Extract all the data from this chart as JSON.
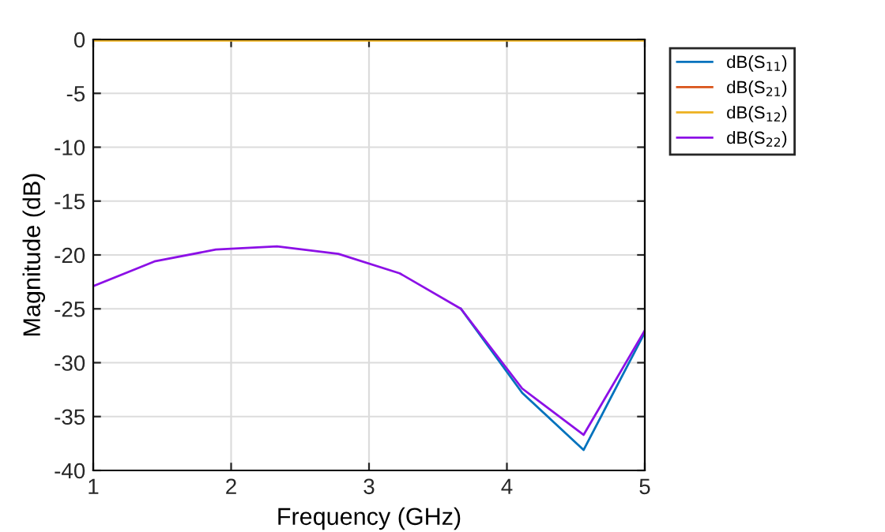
{
  "chart_data": {
    "type": "line",
    "xlabel": "Frequency (GHz)",
    "ylabel": "Magnitude (dB)",
    "x": [
      1,
      1.444,
      1.889,
      2.333,
      2.778,
      3.222,
      3.667,
      4.111,
      4.556,
      5
    ],
    "series": [
      {
        "name": "dB(S$_{11}$)",
        "color": "#0072bd",
        "values": [
          null,
          null,
          null,
          null,
          null,
          null,
          -25.0,
          -32.8,
          -38.1,
          -27.2
        ]
      },
      {
        "name": "dB(S$_{21}$)",
        "color": "#d95319",
        "values": [
          null,
          null,
          null,
          null,
          null,
          null,
          null,
          null,
          null,
          null
        ]
      },
      {
        "name": "dB(S$_{12}$)",
        "color": "#edb120",
        "values": [
          -0.1,
          -0.1,
          -0.1,
          -0.1,
          -0.1,
          -0.1,
          -0.1,
          -0.1,
          -0.1,
          -0.1
        ]
      },
      {
        "name": "dB(S$_{22}$)",
        "color": "#8c10e6",
        "values": [
          -22.9,
          -20.6,
          -19.5,
          -19.2,
          -19.9,
          -21.7,
          -25.0,
          -32.4,
          -36.7,
          -27.0
        ]
      }
    ],
    "xlim": [
      1,
      5
    ],
    "xticks": [
      1,
      2,
      3,
      4,
      5
    ],
    "ylim": [
      -40,
      0
    ],
    "yticks": [
      0,
      {
        "value": -5,
        "label": "-5"
      },
      {
        "value": -10,
        "label": "-10"
      },
      {
        "value": -15,
        "label": "-15"
      },
      {
        "value": -20,
        "label": "-20"
      },
      {
        "value": -25,
        "label": "-25"
      },
      {
        "value": -30,
        "label": "-30"
      },
      {
        "value": -35,
        "label": "-35"
      },
      {
        "value": -40,
        "label": "-40"
      }
    ],
    "grid": true,
    "legend": "right",
    "marker": "none",
    "line_style": "solid"
  }
}
